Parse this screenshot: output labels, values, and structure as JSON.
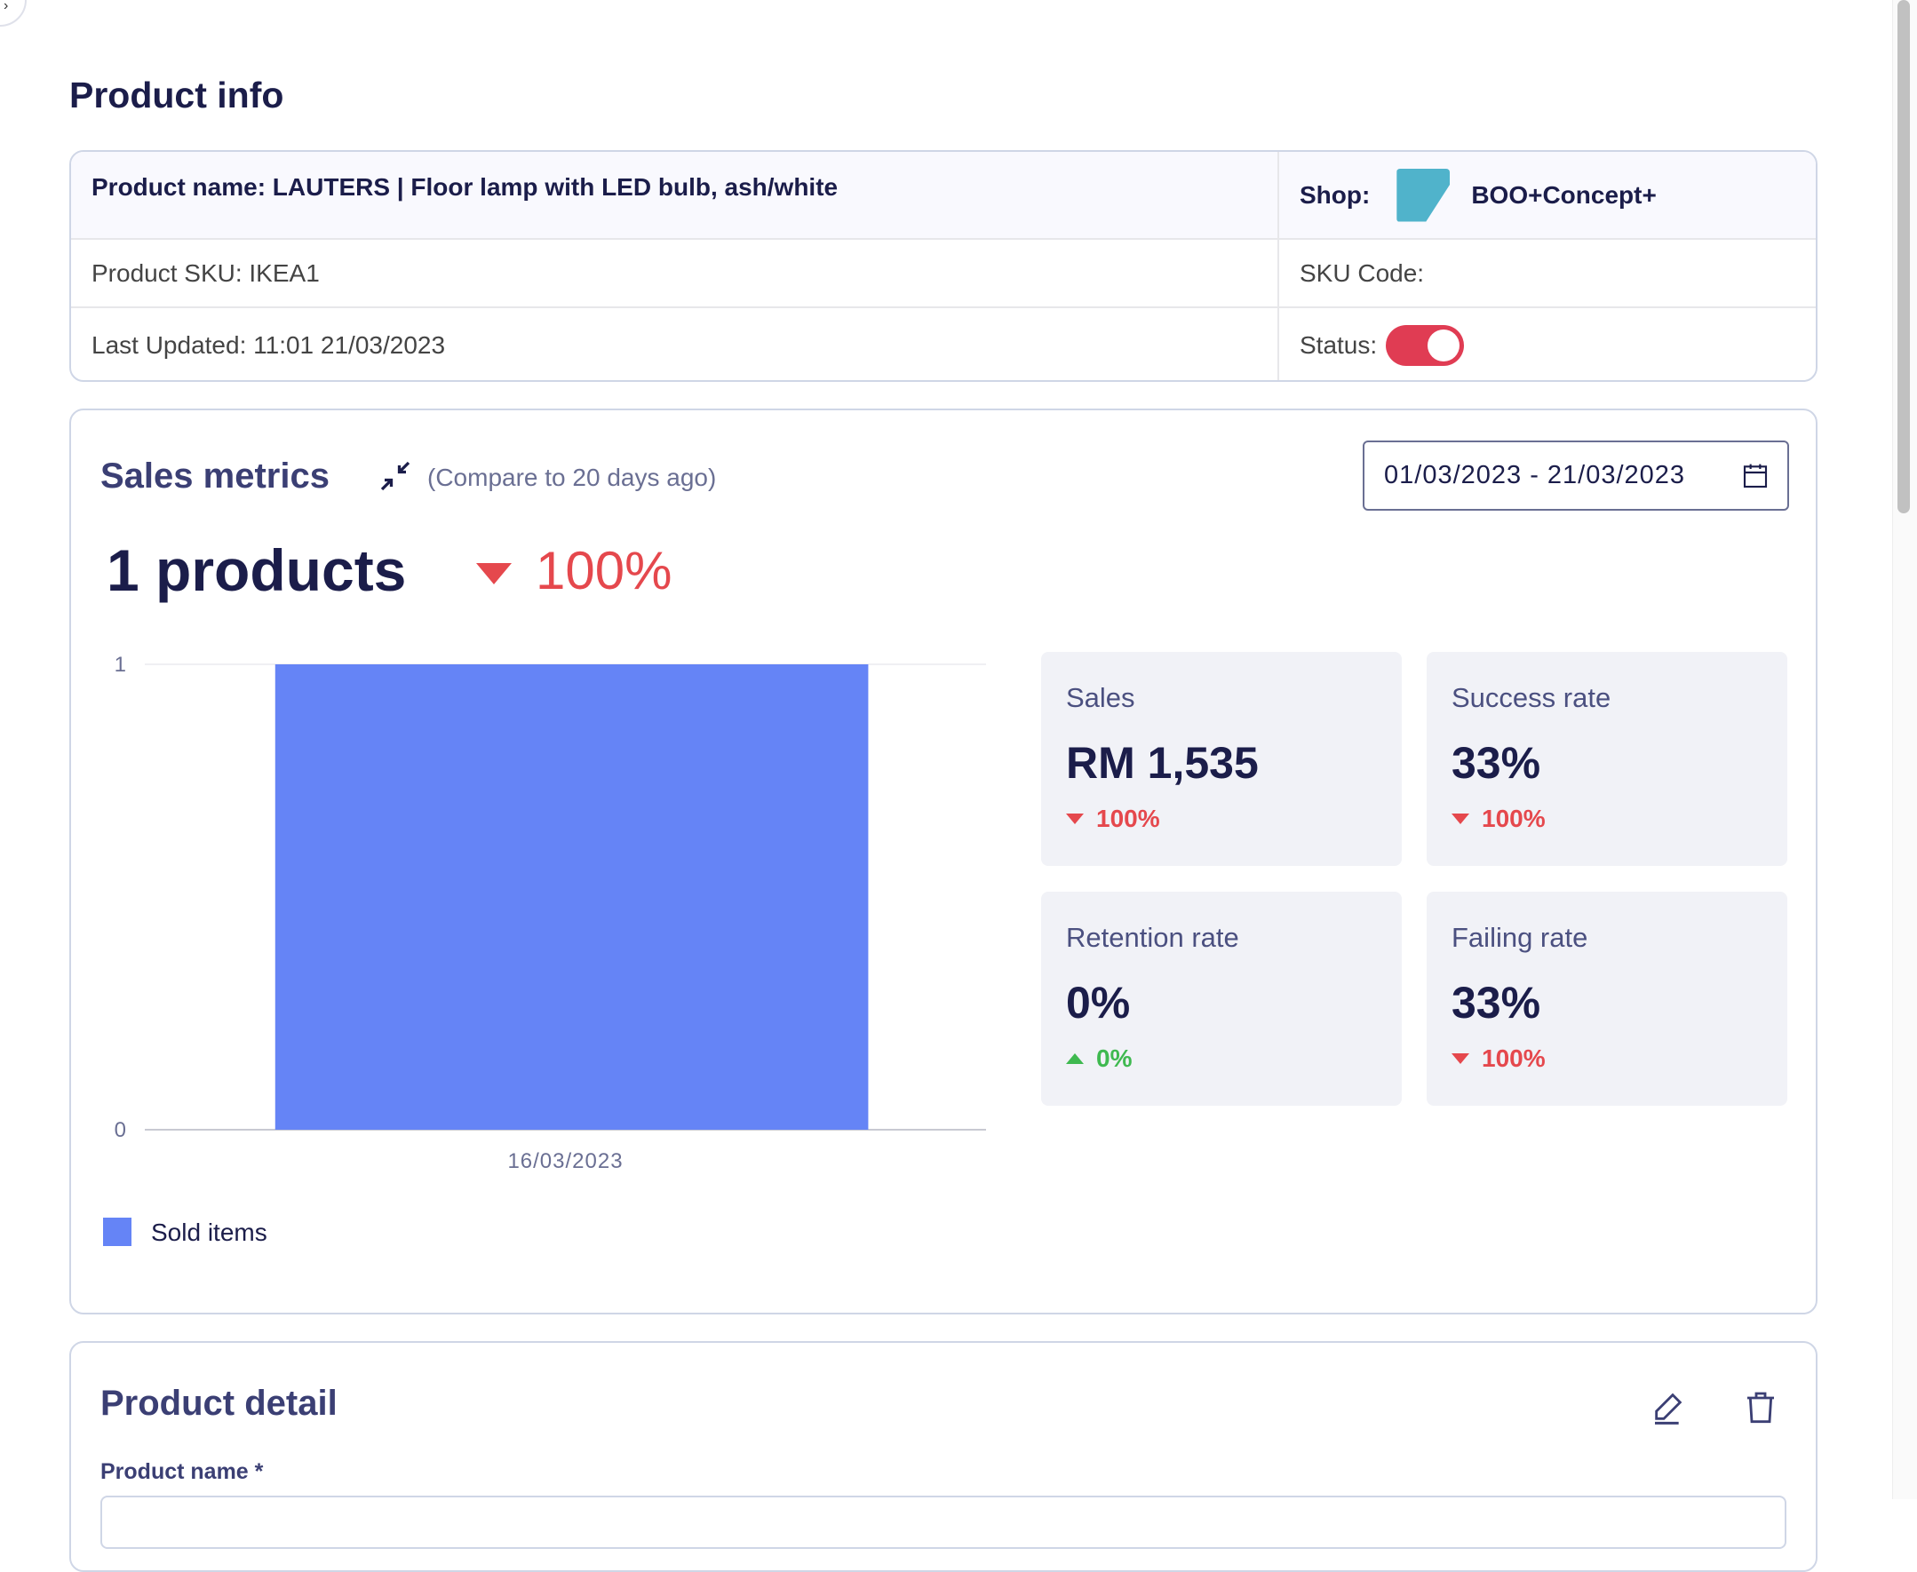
{
  "page": {
    "title": "Product info"
  },
  "info": {
    "product_name": "Product name: LAUTERS | Floor lamp with LED bulb, ash/white",
    "shop_label": "Shop:",
    "shop_name": "BOO+Concept+",
    "sku": "Product SKU: IKEA1",
    "sku_code": "SKU Code:",
    "last_updated": "Last Updated: 11:01 21/03/2023",
    "status_label": "Status:",
    "status_on": true,
    "toggle_color": "#e03c53"
  },
  "sales": {
    "title": "Sales metrics",
    "compare": "(Compare to 20 days ago)",
    "date_range": "01/03/2023 - 21/03/2023",
    "count": "1 products",
    "change": "100%",
    "change_direction": "down",
    "metrics": [
      {
        "label": "Sales",
        "value": "RM 1,535",
        "change": "100%",
        "direction": "down"
      },
      {
        "label": "Success rate",
        "value": "33%",
        "change": "100%",
        "direction": "down"
      },
      {
        "label": "Retention rate",
        "value": "0%",
        "change": "0%",
        "direction": "up"
      },
      {
        "label": "Failing rate",
        "value": "33%",
        "change": "100%",
        "direction": "down"
      }
    ],
    "colors": {
      "down": "#e5484d",
      "up": "#3fb950",
      "bar": "#6584f6"
    }
  },
  "chart_data": {
    "type": "bar",
    "categories": [
      "16/03/2023"
    ],
    "series": [
      {
        "name": "Sold items",
        "values": [
          1
        ]
      }
    ],
    "ylim": [
      0,
      1
    ],
    "yticks": [
      "0",
      "1"
    ],
    "legend": "bottom-left",
    "grid": true
  },
  "detail": {
    "title": "Product detail",
    "product_name_label": "Product name *"
  }
}
